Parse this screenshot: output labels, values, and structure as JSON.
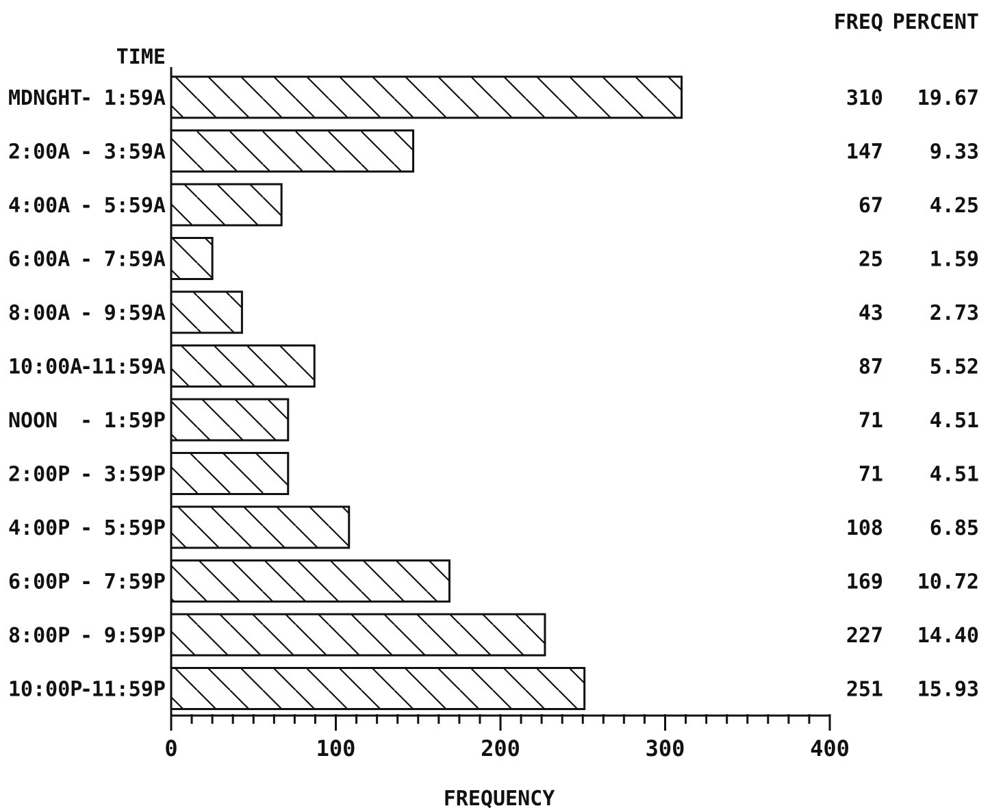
{
  "chart_data": {
    "type": "bar",
    "orientation": "horizontal",
    "title": "",
    "category_axis_label": "TIME",
    "xlabel": "FREQUENCY",
    "column_headers": [
      "FREQ",
      "PERCENT"
    ],
    "xlim": [
      0,
      400
    ],
    "x_ticks": [
      "0",
      "100",
      "200",
      "300",
      "400"
    ],
    "minor_tick_step": 12.5,
    "bar_fill": "diagonal-hatch",
    "colors": {
      "bar_stroke": "#111111",
      "background": "#ffffff"
    },
    "grid": false,
    "categories": [
      {
        "from": "MDNGHT",
        "to": "1:59A"
      },
      {
        "from": "2:00A",
        "to": "3:59A"
      },
      {
        "from": "4:00A",
        "to": "5:59A"
      },
      {
        "from": "6:00A",
        "to": "7:59A"
      },
      {
        "from": "8:00A",
        "to": "9:59A"
      },
      {
        "from": "10:00A",
        "to": "11:59A"
      },
      {
        "from": "NOON",
        "to": "1:59P"
      },
      {
        "from": "2:00P",
        "to": "3:59P"
      },
      {
        "from": "4:00P",
        "to": "5:59P"
      },
      {
        "from": "6:00P",
        "to": "7:59P"
      },
      {
        "from": "8:00P",
        "to": "9:59P"
      },
      {
        "from": "10:00P",
        "to": "11:59P"
      }
    ],
    "values": [
      310,
      147,
      67,
      25,
      43,
      87,
      71,
      71,
      108,
      169,
      227,
      251
    ],
    "percent_labels": [
      "19.67",
      "9.33",
      "4.25",
      "1.59",
      "2.73",
      "5.52",
      "4.51",
      "4.51",
      "6.85",
      "10.72",
      "14.40",
      "15.93"
    ]
  }
}
